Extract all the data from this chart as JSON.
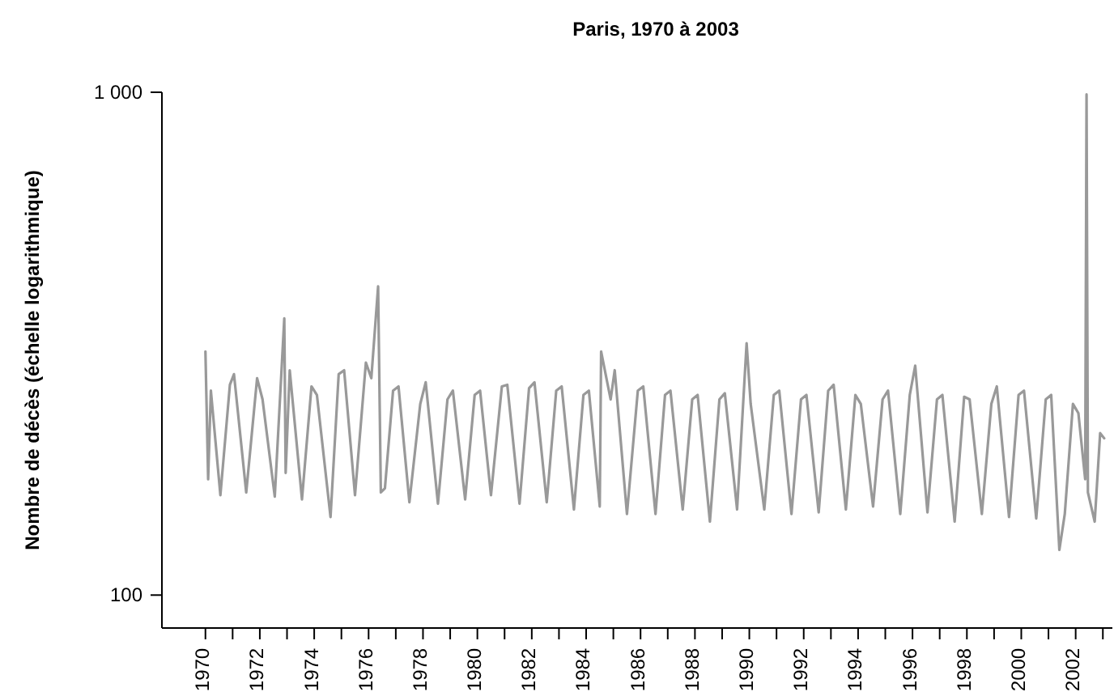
{
  "chart_data": {
    "type": "line",
    "title": "Paris, 1970 à 2003",
    "ylabel": "Nombre de décès (échelle logarithmique)",
    "log": "y",
    "marker": "none",
    "line_style": "solid",
    "xlim": [
      1968.4,
      2003.35
    ],
    "ylim": [
      86,
      1000
    ],
    "yticks": [
      {
        "value": 100,
        "label": "100"
      },
      {
        "value": 1000,
        "label": "1 000"
      }
    ],
    "xticks": [
      1970,
      {
        "value": 1971,
        "label": null
      },
      1972,
      {
        "value": 1973,
        "label": null
      },
      1974,
      {
        "value": 1975,
        "label": null
      },
      1976,
      {
        "value": 1977,
        "label": null
      },
      1978,
      {
        "value": 1979,
        "label": null
      },
      1980,
      {
        "value": 1981,
        "label": null
      },
      1982,
      {
        "value": 1983,
        "label": null
      },
      1984,
      {
        "value": 1985,
        "label": null
      },
      1986,
      {
        "value": 1987,
        "label": null
      },
      1988,
      {
        "value": 1989,
        "label": null
      },
      1990,
      {
        "value": 1991,
        "label": null
      },
      1992,
      {
        "value": 1993,
        "label": null
      },
      1994,
      {
        "value": 1995,
        "label": null
      },
      1996,
      {
        "value": 1997,
        "label": null
      },
      1998,
      {
        "value": 1999,
        "label": null
      },
      2000,
      {
        "value": 2001,
        "label": null
      },
      2002,
      {
        "value": 2003,
        "label": null
      }
    ],
    "series": [
      {
        "color": "#999999",
        "x": [
          1970.0,
          1970.1,
          1970.2,
          1970.55,
          1970.9,
          1971.05,
          1971.5,
          1971.9,
          1972.1,
          1972.55,
          1972.9,
          1972.95,
          1973.1,
          1973.55,
          1973.9,
          1974.1,
          1974.6,
          1974.9,
          1975.1,
          1975.5,
          1975.9,
          1976.1,
          1976.35,
          1976.45,
          1976.6,
          1976.9,
          1977.1,
          1977.5,
          1977.9,
          1978.1,
          1978.55,
          1978.9,
          1979.1,
          1979.55,
          1979.9,
          1980.1,
          1980.5,
          1980.9,
          1981.1,
          1981.55,
          1981.9,
          1982.1,
          1982.55,
          1982.9,
          1983.1,
          1983.55,
          1983.9,
          1984.1,
          1984.5,
          1984.55,
          1984.9,
          1985.05,
          1985.5,
          1985.9,
          1986.1,
          1986.55,
          1986.9,
          1987.1,
          1987.55,
          1987.9,
          1988.1,
          1988.55,
          1988.9,
          1989.1,
          1989.55,
          1989.9,
          1990.05,
          1990.55,
          1990.9,
          1991.1,
          1991.55,
          1991.9,
          1992.1,
          1992.55,
          1992.9,
          1993.1,
          1993.55,
          1993.9,
          1994.1,
          1994.55,
          1994.9,
          1995.1,
          1995.55,
          1995.9,
          1996.1,
          1996.55,
          1996.9,
          1997.1,
          1997.55,
          1997.9,
          1998.1,
          1998.55,
          1998.9,
          1999.1,
          1999.55,
          1999.9,
          2000.1,
          2000.55,
          2000.9,
          2001.1,
          2001.4,
          2001.6,
          2001.9,
          2002.1,
          2002.35,
          2002.4,
          2002.45,
          2002.7,
          2002.9,
          2003.05
        ],
        "values": [
          305,
          170,
          255,
          158,
          262,
          275,
          160,
          270,
          245,
          157,
          355,
          175,
          280,
          155,
          260,
          250,
          143,
          275,
          280,
          158,
          290,
          270,
          411,
          160,
          163,
          255,
          260,
          153,
          240,
          265,
          152,
          245,
          255,
          155,
          250,
          255,
          158,
          260,
          262,
          152,
          258,
          265,
          153,
          255,
          260,
          148,
          250,
          255,
          150,
          305,
          245,
          280,
          145,
          255,
          260,
          145,
          250,
          255,
          148,
          245,
          250,
          140,
          245,
          252,
          148,
          317,
          240,
          148,
          250,
          255,
          145,
          245,
          250,
          146,
          255,
          262,
          148,
          250,
          240,
          150,
          245,
          255,
          145,
          250,
          286,
          146,
          245,
          250,
          140,
          248,
          245,
          145,
          240,
          260,
          143,
          250,
          255,
          142,
          245,
          250,
          123,
          145,
          240,
          230,
          170,
          990,
          160,
          140,
          210,
          205
        ]
      }
    ]
  }
}
